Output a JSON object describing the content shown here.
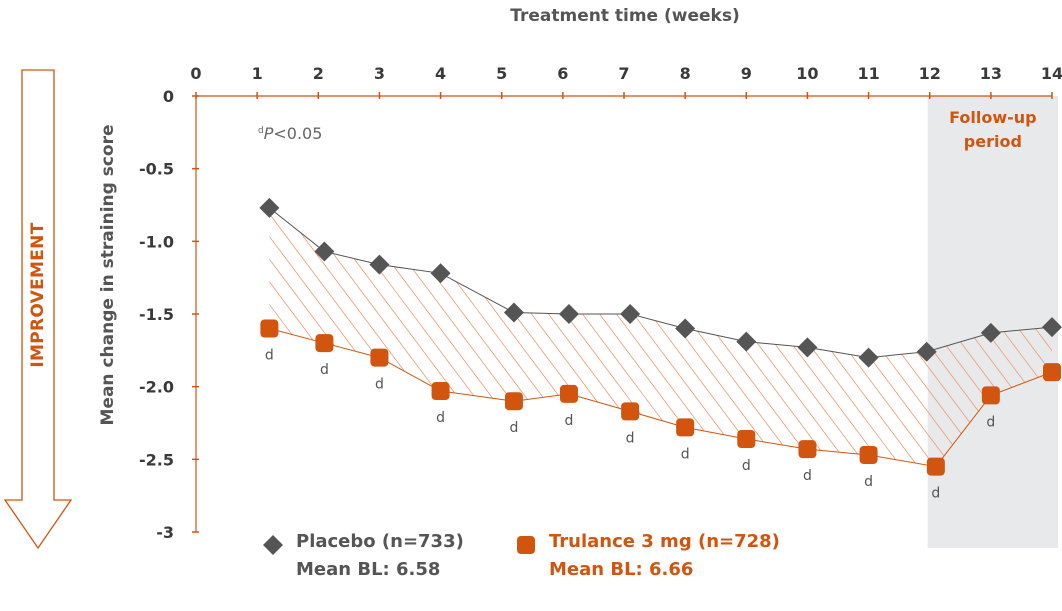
{
  "chart_data": {
    "type": "line",
    "title": "",
    "xlabel": "Treatment time (weeks)",
    "ylabel": "Mean change in straining score",
    "side_label": "IMPROVEMENT",
    "x_ticks": [
      0,
      1,
      2,
      3,
      4,
      5,
      6,
      7,
      8,
      9,
      10,
      11,
      12,
      13,
      14
    ],
    "y_ticks": [
      0,
      -0.5,
      -1.0,
      -1.5,
      -2.0,
      -2.5,
      -3
    ],
    "y_tick_labels": [
      "0",
      "-0.5",
      "-1.0",
      "-1.5",
      "-2.0",
      "-2.5",
      "-3"
    ],
    "xlim": [
      0,
      14
    ],
    "ylim": [
      -3,
      0
    ],
    "shaded_region": {
      "x_start": 12,
      "x_end": 14,
      "label_line1": "Follow-up",
      "label_line2": "period"
    },
    "annotation": {
      "prefix": "d",
      "p": "P",
      "rest": "<0.05"
    },
    "significance_marker": "d",
    "series": [
      {
        "name": "Placebo (n=733)",
        "baseline": "Mean BL: 6.58",
        "color": "#555555",
        "marker": "diamond",
        "x": [
          1.2,
          2.1,
          3.0,
          4.0,
          5.2,
          6.1,
          7.1,
          8.0,
          9.0,
          10.0,
          11.0,
          11.95,
          13.0,
          14.0
        ],
        "y": [
          -0.77,
          -1.07,
          -1.16,
          -1.22,
          -1.49,
          -1.5,
          -1.5,
          -1.6,
          -1.69,
          -1.73,
          -1.8,
          -1.76,
          -1.63,
          -1.59
        ]
      },
      {
        "name": "Trulance 3 mg (n=728)",
        "baseline": "Mean BL: 6.66",
        "color": "#d2550f",
        "marker": "square",
        "x": [
          1.2,
          2.1,
          3.0,
          4.0,
          5.2,
          6.1,
          7.1,
          8.0,
          9.0,
          10.0,
          11.0,
          12.1,
          13.0,
          14.0
        ],
        "y": [
          -1.6,
          -1.7,
          -1.8,
          -2.03,
          -2.1,
          -2.05,
          -2.17,
          -2.28,
          -2.36,
          -2.43,
          -2.47,
          -2.55,
          -2.06,
          -1.9
        ],
        "significant": [
          true,
          true,
          true,
          true,
          true,
          true,
          true,
          true,
          true,
          true,
          true,
          true,
          true,
          false
        ]
      }
    ]
  }
}
